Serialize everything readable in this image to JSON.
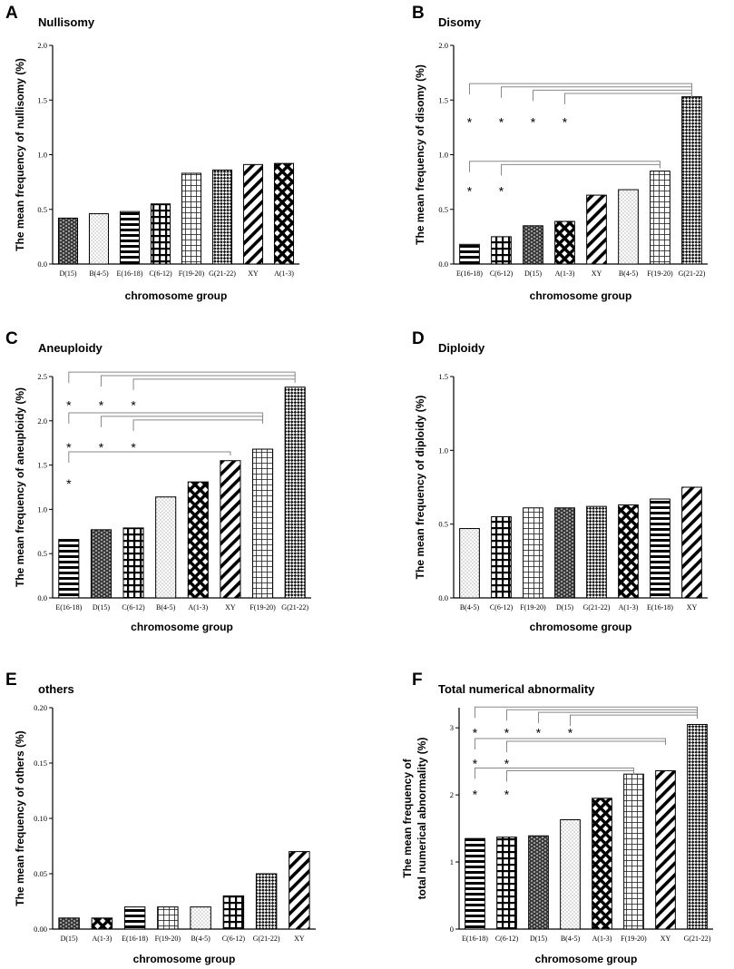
{
  "chart_data": [
    {
      "type": "bar",
      "letter": "A",
      "title": "Nullisomy",
      "xlabel": "chromosome group",
      "ylabel": "The mean frequency of nullisomy  (%)",
      "ylabel2": "",
      "ylim": [
        0,
        2.0
      ],
      "ticks": [
        0,
        0.5,
        1.0,
        1.5,
        2.0
      ],
      "tick_labels": [
        "0.0",
        "0.5",
        "1.0",
        "1.5",
        "2.0"
      ],
      "categories": [
        "D(15)",
        "B(4-5)",
        "E(16-18)",
        "C(6-12)",
        "F(19-20)",
        "G(21-22)",
        "XY",
        "A(1-3)"
      ],
      "patterns": [
        "brick",
        "dots",
        "hlines",
        "grid",
        "grid-fine",
        "checker",
        "diag",
        "diamond"
      ],
      "values": [
        0.42,
        0.46,
        0.48,
        0.55,
        0.83,
        0.86,
        0.91,
        0.92
      ],
      "comparisons": [],
      "stars": []
    },
    {
      "type": "bar",
      "letter": "B",
      "title": "Disomy",
      "xlabel": "chromosome group",
      "ylabel": "The mean frequency of disomy (%)",
      "ylabel2": "",
      "ylim": [
        0,
        2.0
      ],
      "ticks": [
        0,
        0.5,
        1.0,
        1.5,
        2.0
      ],
      "tick_labels": [
        "0.0",
        "0.5",
        "1.0",
        "1.5",
        "2.0"
      ],
      "categories": [
        "E(16-18)",
        "C(6-12)",
        "D(15)",
        "A(1-3)",
        "XY",
        "B(4-5)",
        "F(19-20)",
        "G(21-22)"
      ],
      "patterns": [
        "hlines",
        "grid",
        "brick",
        "diamond",
        "diag",
        "dots",
        "grid-fine",
        "checker"
      ],
      "values": [
        0.18,
        0.25,
        0.35,
        0.39,
        0.63,
        0.68,
        0.85,
        1.53
      ],
      "comparisons": [
        {
          "from": 0,
          "to": 7,
          "level": 1.65
        },
        {
          "from": 1,
          "to": 7,
          "level": 1.62
        },
        {
          "from": 2,
          "to": 7,
          "level": 1.59
        },
        {
          "from": 3,
          "to": 7,
          "level": 1.56
        },
        {
          "from": 0,
          "to": 6,
          "level": 0.94
        },
        {
          "from": 1,
          "to": 6,
          "level": 0.91
        }
      ],
      "stars": [
        {
          "cat": 0,
          "y": 1.33
        },
        {
          "cat": 1,
          "y": 1.33
        },
        {
          "cat": 2,
          "y": 1.33
        },
        {
          "cat": 3,
          "y": 1.33
        },
        {
          "cat": 0,
          "y": 0.7
        },
        {
          "cat": 1,
          "y": 0.7
        }
      ]
    },
    {
      "type": "bar",
      "letter": "C",
      "title": "Aneuploidy",
      "xlabel": "chromosome group",
      "ylabel": "The mean frequency of aneuploidy (%)",
      "ylabel2": "",
      "ylim": [
        0,
        2.5
      ],
      "ticks": [
        0,
        0.5,
        1.0,
        1.5,
        2.0,
        2.5
      ],
      "tick_labels": [
        "0.0",
        "0.5",
        "1.0",
        "1.5",
        "2.0",
        "2.5"
      ],
      "categories": [
        "E(16-18)",
        "D(15)",
        "C(6-12)",
        "B(4-5)",
        "A(1-3)",
        "XY",
        "F(19-20)",
        "G(21-22)"
      ],
      "patterns": [
        "hlines",
        "brick",
        "grid",
        "dots",
        "diamond",
        "diag",
        "grid-fine",
        "checker"
      ],
      "values": [
        0.66,
        0.77,
        0.79,
        1.14,
        1.31,
        1.55,
        1.68,
        2.38
      ],
      "comparisons": [
        {
          "from": 0,
          "to": 7,
          "level": 2.55
        },
        {
          "from": 1,
          "to": 7,
          "level": 2.51
        },
        {
          "from": 2,
          "to": 7,
          "level": 2.47
        },
        {
          "from": 0,
          "to": 6,
          "level": 2.09
        },
        {
          "from": 1,
          "to": 6,
          "level": 2.05
        },
        {
          "from": 2,
          "to": 6,
          "level": 2.01
        },
        {
          "from": 0,
          "to": 5,
          "level": 1.65
        }
      ],
      "stars": [
        {
          "cat": 0,
          "y": 2.22
        },
        {
          "cat": 1,
          "y": 2.22
        },
        {
          "cat": 2,
          "y": 2.22
        },
        {
          "cat": 0,
          "y": 1.74
        },
        {
          "cat": 1,
          "y": 1.74
        },
        {
          "cat": 2,
          "y": 1.74
        },
        {
          "cat": 0,
          "y": 1.33
        }
      ]
    },
    {
      "type": "bar",
      "letter": "D",
      "title": "Diploidy",
      "xlabel": "chromosome group",
      "ylabel": "The mean frequency of diploidy (%)",
      "ylabel2": "",
      "ylim": [
        0,
        1.5
      ],
      "ticks": [
        0,
        0.5,
        1.0,
        1.5
      ],
      "tick_labels": [
        "0.0",
        "0.5",
        "1.0",
        "1.5"
      ],
      "categories": [
        "B(4-5)",
        "C(6-12)",
        "F(19-20)",
        "D(15)",
        "G(21-22)",
        "A(1-3)",
        "E(16-18)",
        "XY"
      ],
      "patterns": [
        "dots",
        "grid",
        "grid-fine",
        "brick",
        "checker",
        "diamond",
        "hlines",
        "diag"
      ],
      "values": [
        0.47,
        0.55,
        0.61,
        0.61,
        0.62,
        0.63,
        0.67,
        0.75
      ],
      "comparisons": [],
      "stars": []
    },
    {
      "type": "bar",
      "letter": "E",
      "title": "others",
      "xlabel": "chromosome group",
      "ylabel": "The mean frequency of others (%)",
      "ylabel2": "",
      "ylim": [
        0,
        0.2
      ],
      "ticks": [
        0,
        0.05,
        0.1,
        0.15,
        0.2
      ],
      "tick_labels": [
        "0.00",
        "0.05",
        "0.10",
        "0.15",
        "0.20"
      ],
      "categories": [
        "D(15)",
        "A(1-3)",
        "E(16-18)",
        "F(19-20)",
        "B(4-5)",
        "C(6-12)",
        "G(21-22)",
        "XY"
      ],
      "patterns": [
        "brick",
        "diamond",
        "hlines",
        "grid-fine",
        "dots",
        "grid",
        "checker",
        "diag"
      ],
      "values": [
        0.01,
        0.01,
        0.02,
        0.02,
        0.02,
        0.03,
        0.05,
        0.07
      ],
      "comparisons": [],
      "stars": []
    },
    {
      "type": "bar",
      "letter": "F",
      "title": "Total numerical abnormality",
      "xlabel": "chromosome group",
      "ylabel": "The mean frequency of",
      "ylabel2": "total numerical abnormality (%)",
      "ylim": [
        0,
        3.3
      ],
      "ticks": [
        0,
        1,
        2,
        3
      ],
      "tick_labels": [
        "0",
        "1",
        "2",
        "3"
      ],
      "categories": [
        "E(16-18)",
        "C(6-12)",
        "D(15)",
        "B(4-5)",
        "A(1-3)",
        "F(19-20)",
        "XY",
        "G(21-22)"
      ],
      "patterns": [
        "hlines",
        "grid",
        "brick",
        "dots",
        "diamond",
        "grid-fine",
        "diag",
        "checker"
      ],
      "values": [
        1.35,
        1.37,
        1.39,
        1.63,
        1.95,
        2.31,
        2.36,
        3.05
      ],
      "comparisons": [
        {
          "from": 0,
          "to": 7,
          "level": 3.31
        },
        {
          "from": 1,
          "to": 7,
          "level": 3.27
        },
        {
          "from": 2,
          "to": 7,
          "level": 3.23
        },
        {
          "from": 3,
          "to": 7,
          "level": 3.19
        },
        {
          "from": 0,
          "to": 6,
          "level": 2.84
        },
        {
          "from": 1,
          "to": 6,
          "level": 2.8
        },
        {
          "from": 0,
          "to": 5,
          "level": 2.4
        },
        {
          "from": 1,
          "to": 5,
          "level": 2.36
        }
      ],
      "stars": [
        {
          "cat": 0,
          "y": 2.98
        },
        {
          "cat": 1,
          "y": 2.98
        },
        {
          "cat": 2,
          "y": 2.98
        },
        {
          "cat": 3,
          "y": 2.98
        },
        {
          "cat": 0,
          "y": 2.52
        },
        {
          "cat": 1,
          "y": 2.52
        },
        {
          "cat": 0,
          "y": 2.06
        },
        {
          "cat": 1,
          "y": 2.06
        }
      ]
    }
  ]
}
